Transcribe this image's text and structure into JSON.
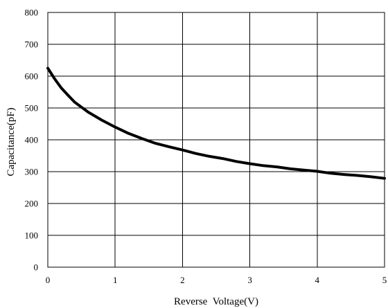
{
  "chart_data": {
    "type": "line",
    "title": "",
    "xlabel": "Reverse  Voltage(V)",
    "ylabel": "Capacitance(pF)",
    "xlim": [
      0,
      5
    ],
    "ylim": [
      0,
      800
    ],
    "grid": true,
    "x_ticks": [
      "0",
      "1",
      "2",
      "3",
      "4",
      "5"
    ],
    "y_ticks": [
      "0",
      "100",
      "200",
      "300",
      "400",
      "500",
      "600",
      "700",
      "800"
    ],
    "series": [
      {
        "color": "#000000",
        "x": [
          0,
          0.1,
          0.2,
          0.3,
          0.4,
          0.6,
          0.8,
          1.0,
          1.2,
          1.4,
          1.6,
          1.8,
          2.0,
          2.2,
          2.4,
          2.6,
          2.8,
          3.0,
          3.2,
          3.4,
          3.6,
          3.8,
          4.0,
          4.2,
          4.4,
          4.6,
          4.8,
          5.0
        ],
        "y": [
          625,
          592,
          563,
          540,
          518,
          487,
          462,
          440,
          420,
          404,
          389,
          378,
          368,
          357,
          348,
          341,
          332,
          325,
          319,
          315,
          309,
          305,
          301,
          295,
          291,
          288,
          284,
          279
        ]
      }
    ]
  }
}
